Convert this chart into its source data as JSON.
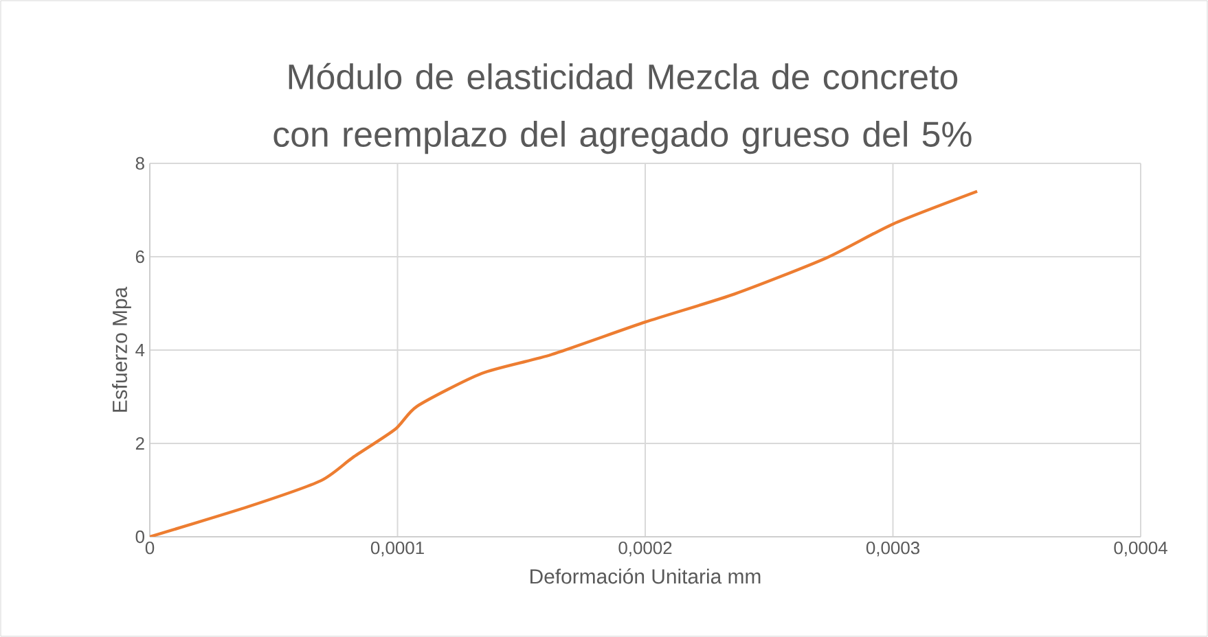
{
  "chart_data": {
    "type": "line",
    "title": "Módulo de elasticidad Mezcla de concreto con reemplazo del agregado grueso del 5%",
    "xlabel": "Deformación Unitaria mm",
    "ylabel": "Esfuerzo Mpa",
    "series": [
      {
        "color": "#ed7d31",
        "x": [
          0,
          4e-05,
          6.9e-05,
          8.2e-05,
          9.9e-05,
          0.000108,
          0.000134,
          0.000162,
          0.0002,
          0.000236,
          0.000273,
          0.0003,
          0.000334
        ],
        "values": [
          0,
          0.65,
          1.2,
          1.7,
          2.3,
          2.8,
          3.5,
          3.9,
          4.6,
          5.2,
          5.97,
          6.7,
          7.4
        ]
      }
    ],
    "xlim": [
      0,
      0.0004
    ],
    "ylim": [
      0,
      8
    ],
    "xticks": [
      {
        "value": 0,
        "label": "0"
      },
      {
        "value": 0.0001,
        "label": "0,0001"
      },
      {
        "value": 0.0002,
        "label": "0,0002"
      },
      {
        "value": 0.0003,
        "label": "0,0003"
      },
      {
        "value": 0.0004,
        "label": "0,0004"
      }
    ],
    "yticks": [
      0,
      2,
      4,
      6,
      8
    ],
    "grid": true,
    "marker": "none",
    "line_style": "solid"
  }
}
